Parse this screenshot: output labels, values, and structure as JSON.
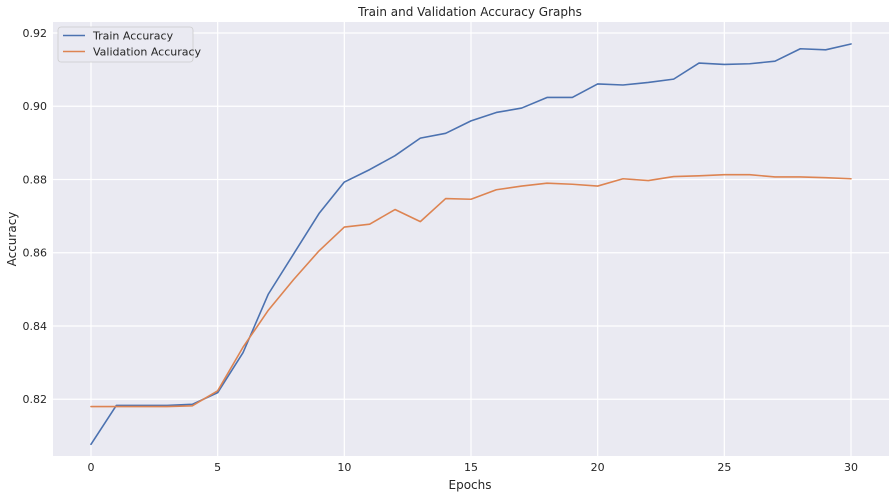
{
  "chart_data": {
    "type": "line",
    "title": "Train and Validation Accuracy Graphs",
    "xlabel": "Epochs",
    "ylabel": "Accuracy",
    "xlim": [
      -1.5,
      31.5
    ],
    "ylim": [
      0.8045,
      0.923
    ],
    "grid": true,
    "legend_position": "top-left",
    "x_ticks": [
      0,
      5,
      10,
      15,
      20,
      25,
      30
    ],
    "y_ticks": [
      0.82,
      0.84,
      0.86,
      0.88,
      0.9,
      0.92
    ],
    "y_tick_labels": [
      "0.82",
      "0.84",
      "0.86",
      "0.88",
      "0.90",
      "0.92"
    ],
    "x": [
      0,
      1,
      2,
      3,
      4,
      5,
      6,
      7,
      8,
      9,
      10,
      11,
      12,
      13,
      14,
      15,
      16,
      17,
      18,
      19,
      20,
      21,
      22,
      23,
      24,
      25,
      26,
      27,
      28,
      29,
      30
    ],
    "series": [
      {
        "name": "Train Accuracy",
        "color": "#4c72b0",
        "values": [
          0.8077,
          0.8183,
          0.8183,
          0.8183,
          0.8186,
          0.8218,
          0.8327,
          0.8487,
          0.8597,
          0.8707,
          0.8793,
          0.8827,
          0.8865,
          0.8913,
          0.8926,
          0.896,
          0.8983,
          0.8995,
          0.9024,
          0.9024,
          0.9061,
          0.9058,
          0.9065,
          0.9074,
          0.9118,
          0.9114,
          0.9116,
          0.9123,
          0.9157,
          0.9154,
          0.917
        ]
      },
      {
        "name": "Validation Accuracy",
        "color": "#dd8452",
        "values": [
          0.818,
          0.818,
          0.818,
          0.818,
          0.8182,
          0.8223,
          0.8342,
          0.8443,
          0.8527,
          0.8605,
          0.867,
          0.8678,
          0.8718,
          0.8685,
          0.8748,
          0.8746,
          0.8772,
          0.8782,
          0.879,
          0.8787,
          0.8782,
          0.8802,
          0.8797,
          0.8808,
          0.881,
          0.8813,
          0.8813,
          0.8807,
          0.8807,
          0.8805,
          0.8802
        ]
      }
    ]
  }
}
